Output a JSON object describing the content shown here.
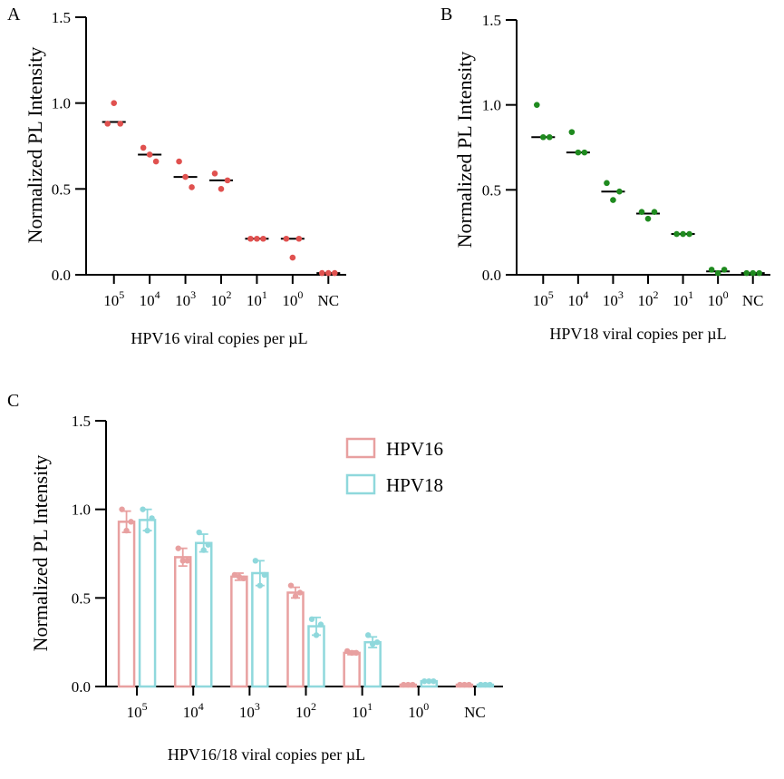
{
  "chart_data": [
    {
      "panel": "A",
      "type": "scatter",
      "xlabel": "HPV16 viral copies per µL",
      "ylabel": "Normalized PL Intensity",
      "ylim": [
        0,
        1.5
      ],
      "yticks": [
        "0.0",
        "0.5",
        "1.0",
        "1.5"
      ],
      "categories": [
        {
          "base": "10",
          "exp": "5"
        },
        {
          "base": "10",
          "exp": "4"
        },
        {
          "base": "10",
          "exp": "3"
        },
        {
          "base": "10",
          "exp": "2"
        },
        {
          "base": "10",
          "exp": "1"
        },
        {
          "base": "10",
          "exp": "0"
        },
        {
          "base": "NC",
          "exp": ""
        }
      ],
      "color": "#e0514f",
      "points": [
        [
          0.88,
          0.88,
          1.0
        ],
        [
          0.74,
          0.66,
          0.7
        ],
        [
          0.66,
          0.51,
          0.57
        ],
        [
          0.59,
          0.55,
          0.5
        ],
        [
          0.21,
          0.21,
          0.21
        ],
        [
          0.21,
          0.21,
          0.1
        ],
        [
          0.01,
          0.01,
          0.01
        ]
      ],
      "medians": [
        0.89,
        0.7,
        0.57,
        0.55,
        0.21,
        0.21,
        0.01
      ]
    },
    {
      "panel": "B",
      "type": "scatter",
      "xlabel": "HPV18 viral copies per µL",
      "ylabel": "Normalized PL Intensity",
      "ylim": [
        0,
        1.5
      ],
      "yticks": [
        "0.0",
        "0.5",
        "1.0",
        "1.5"
      ],
      "categories": [
        {
          "base": "10",
          "exp": "5"
        },
        {
          "base": "10",
          "exp": "4"
        },
        {
          "base": "10",
          "exp": "3"
        },
        {
          "base": "10",
          "exp": "2"
        },
        {
          "base": "10",
          "exp": "1"
        },
        {
          "base": "10",
          "exp": "0"
        },
        {
          "base": "NC",
          "exp": ""
        }
      ],
      "color": "#1f8a1f",
      "points": [
        [
          1.0,
          0.81,
          0.81
        ],
        [
          0.84,
          0.72,
          0.72
        ],
        [
          0.54,
          0.49,
          0.44
        ],
        [
          0.37,
          0.37,
          0.33
        ],
        [
          0.24,
          0.24,
          0.24
        ],
        [
          0.03,
          0.03,
          0.01
        ],
        [
          0.01,
          0.01,
          0.01
        ]
      ],
      "medians": [
        0.81,
        0.72,
        0.49,
        0.36,
        0.24,
        0.02,
        0.01
      ]
    },
    {
      "panel": "C",
      "type": "bar",
      "xlabel": "HPV16/18  viral copies per µL",
      "ylabel": "Normalized PL Intensity",
      "ylim": [
        0,
        1.5
      ],
      "yticks": [
        "0.0",
        "0.5",
        "1.0",
        "1.5"
      ],
      "categories": [
        {
          "base": "10",
          "exp": "5"
        },
        {
          "base": "10",
          "exp": "4"
        },
        {
          "base": "10",
          "exp": "3"
        },
        {
          "base": "10",
          "exp": "2"
        },
        {
          "base": "10",
          "exp": "1"
        },
        {
          "base": "10",
          "exp": "0"
        },
        {
          "base": "NC",
          "exp": ""
        }
      ],
      "legend_position": "top-center",
      "series": [
        {
          "name": "HPV16",
          "color": "#e8a0a0",
          "values": [
            0.93,
            0.73,
            0.62,
            0.53,
            0.19,
            0.01,
            0.01
          ],
          "err": [
            0.06,
            0.05,
            0.02,
            0.03,
            0.01,
            0.0,
            0.0
          ],
          "points": [
            [
              1.0,
              0.93,
              0.88
            ],
            [
              0.78,
              0.71,
              0.71
            ],
            [
              0.63,
              0.61,
              0.62
            ],
            [
              0.57,
              0.53,
              0.51
            ],
            [
              0.2,
              0.19,
              0.19
            ],
            [
              0.01,
              0.01,
              0.01
            ],
            [
              0.01,
              0.01,
              0.01
            ]
          ]
        },
        {
          "name": "HPV18",
          "color": "#8fd8dc",
          "values": [
            0.94,
            0.81,
            0.64,
            0.34,
            0.25,
            0.03,
            0.01
          ],
          "err": [
            0.06,
            0.05,
            0.07,
            0.05,
            0.03,
            0.0,
            0.0
          ],
          "points": [
            [
              1.0,
              0.95,
              0.88
            ],
            [
              0.87,
              0.8,
              0.77
            ],
            [
              0.71,
              0.63,
              0.57
            ],
            [
              0.38,
              0.35,
              0.29
            ],
            [
              0.29,
              0.25,
              0.24
            ],
            [
              0.03,
              0.03,
              0.03
            ],
            [
              0.01,
              0.01,
              0.01
            ]
          ]
        }
      ]
    }
  ]
}
